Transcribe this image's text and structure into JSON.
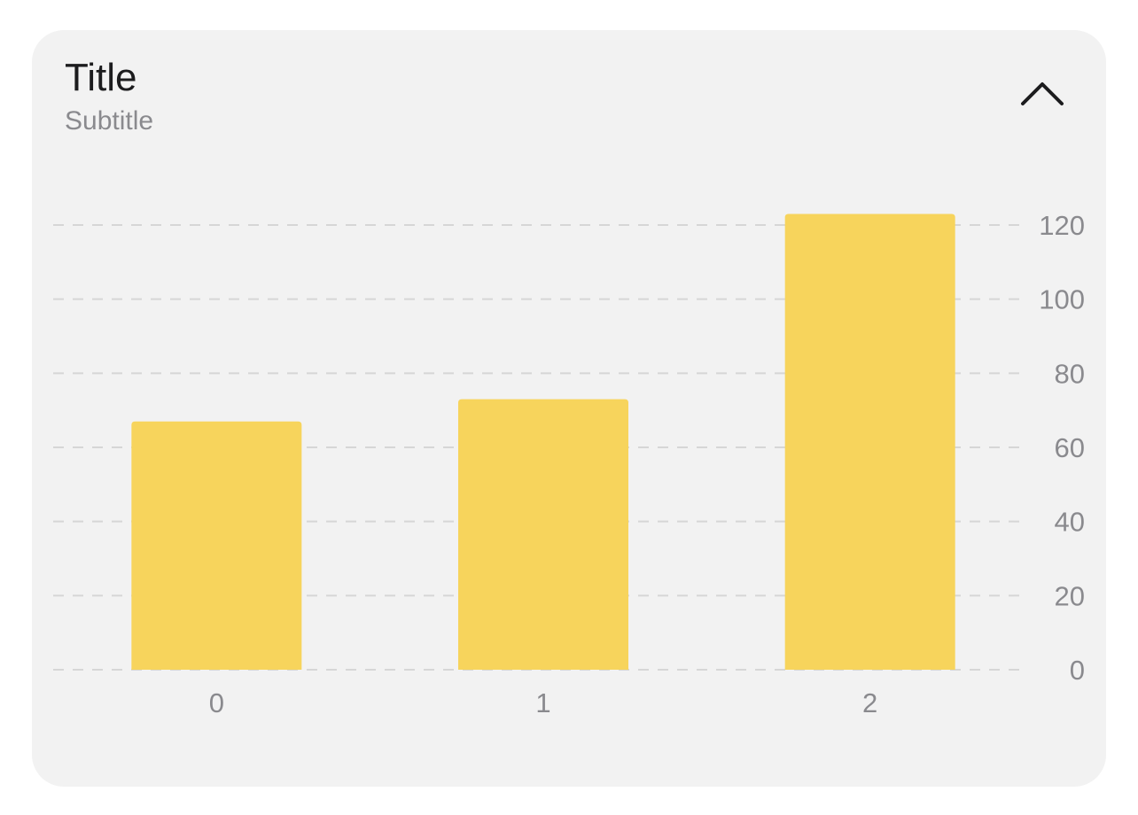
{
  "card": {
    "title": "Title",
    "subtitle": "Subtitle",
    "collapse_icon": "chevron-up-icon"
  },
  "colors": {
    "bar": "#f7d45c",
    "grid": "#d6d6d6",
    "card_bg": "#f2f2f2",
    "muted_text": "#8a8a8e"
  },
  "chart_data": {
    "type": "bar",
    "title": "Title",
    "subtitle": "Subtitle",
    "xlabel": "",
    "ylabel": "",
    "categories": [
      "0",
      "1",
      "2"
    ],
    "values": [
      67,
      73,
      123
    ],
    "ylim": [
      0,
      120
    ],
    "yticks": [
      "0",
      "20",
      "40",
      "60",
      "80",
      "100",
      "120"
    ],
    "y_axis_position": "right",
    "grid": true
  }
}
